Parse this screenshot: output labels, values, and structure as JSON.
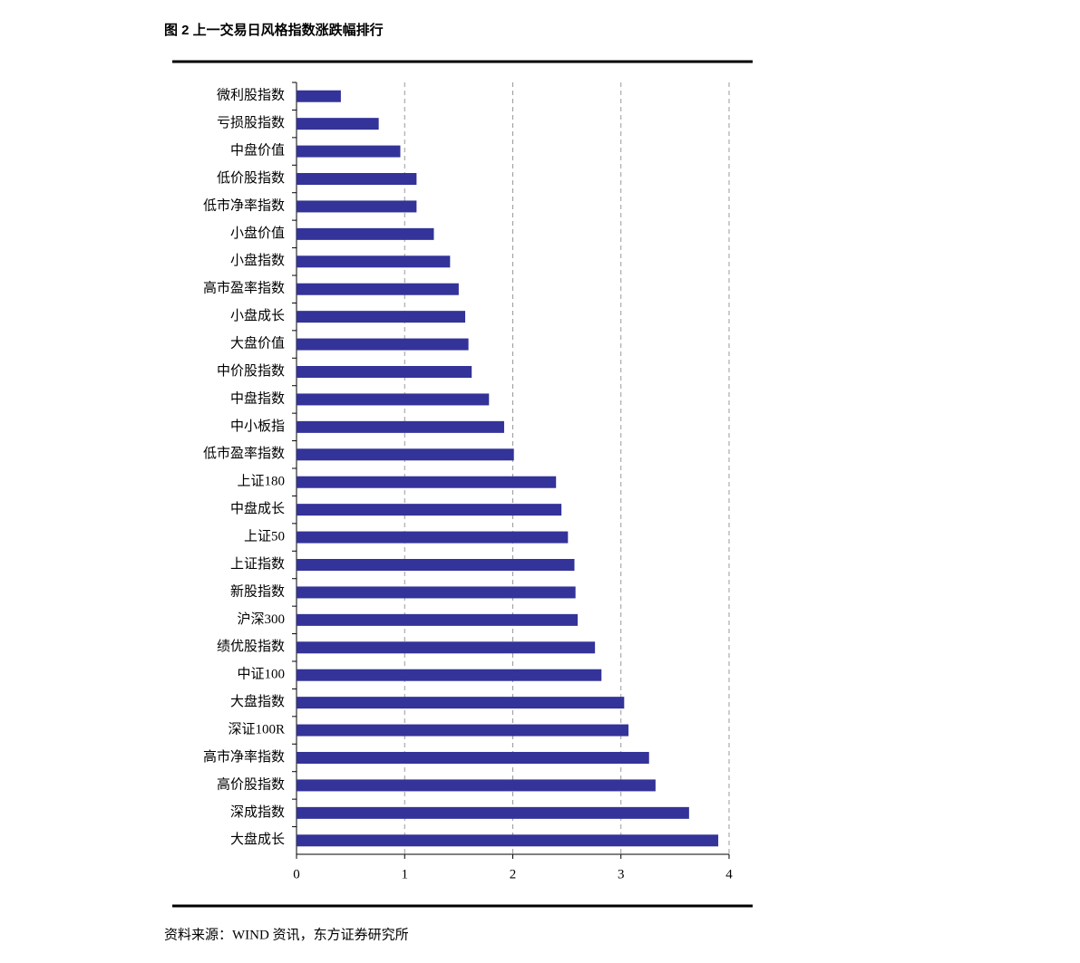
{
  "chart_data": {
    "type": "bar",
    "orientation": "horizontal",
    "title": "图 2 上一交易日风格指数涨跌幅排行",
    "source": "资料来源：WIND 资讯，东方证券研究所",
    "categories": [
      "微利股指数",
      "亏损股指数",
      "中盘价值",
      "低价股指数",
      "低市净率指数",
      "小盘价值",
      "小盘指数",
      "高市盈率指数",
      "小盘成长",
      "大盘价值",
      "中价股指数",
      "中盘指数",
      "中小板指",
      "低市盈率指数",
      "上证180",
      "中盘成长",
      "上证50",
      "上证指数",
      "新股指数",
      "沪深300",
      "绩优股指数",
      "中证100",
      "大盘指数",
      "深证100R",
      "高市净率指数",
      "高价股指数",
      "深成指数",
      "大盘成长"
    ],
    "values": [
      0.41,
      0.76,
      0.96,
      1.11,
      1.11,
      1.27,
      1.42,
      1.5,
      1.56,
      1.59,
      1.62,
      1.78,
      1.92,
      2.01,
      2.4,
      2.45,
      2.51,
      2.57,
      2.58,
      2.6,
      2.76,
      2.82,
      3.03,
      3.07,
      3.26,
      3.32,
      3.63,
      3.9
    ],
    "color": "#333399",
    "xlim": [
      0,
      4
    ],
    "xticks": [
      0,
      1,
      2,
      3,
      4
    ],
    "grid": true
  }
}
